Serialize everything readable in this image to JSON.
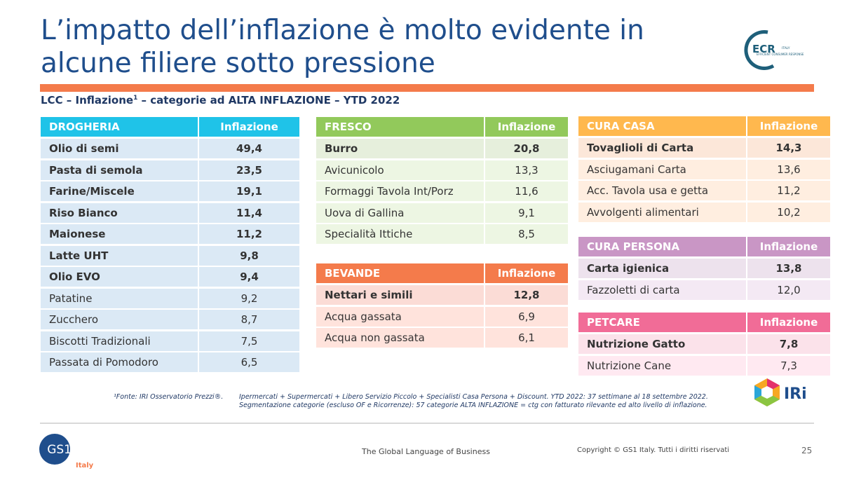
{
  "header": {
    "title_lines": [
      "L’impatto dell’inflazione è molto evidente in",
      "alcune filiere sotto pressione"
    ],
    "subtitle": {
      "before": "LCC – Inflazione",
      "sup": "1",
      "after": " – categorie ad ALTA INFLAZIONE – YTD 2022"
    },
    "ecr_logo": {
      "mark": "ECR",
      "country": "ITALY",
      "tagline": "EFFICIENT CONSUMER RESPONSE"
    }
  },
  "tables": [
    {
      "title": "DROGHERIA",
      "column": "Inflazione",
      "header_color": "#1fc3e8",
      "row_color": "#dbe9f5",
      "rows": [
        {
          "label": "Olio di semi",
          "value": "49,4",
          "bold": true
        },
        {
          "label": "Pasta di semola",
          "value": "23,5",
          "bold": true
        },
        {
          "label": "Farine/Miscele",
          "value": "19,1",
          "bold": true
        },
        {
          "label": "Riso Bianco",
          "value": "11,4",
          "bold": true
        },
        {
          "label": "Maionese",
          "value": "11,2",
          "bold": true
        },
        {
          "label": "Latte UHT",
          "value": "9,8",
          "bold": true
        },
        {
          "label": "Olio EVO",
          "value": "9,4",
          "bold": true
        },
        {
          "label": "Patatine",
          "value": "9,2",
          "bold": false
        },
        {
          "label": "Zucchero",
          "value": "8,7",
          "bold": false
        },
        {
          "label": "Biscotti Tradizionali",
          "value": "7,5",
          "bold": false
        },
        {
          "label": "Passata di Pomodoro",
          "value": "6,5",
          "bold": false
        }
      ]
    },
    {
      "title": "FRESCO",
      "column": "Inflazione",
      "header_color": "#92c95b",
      "row_color": "#e6efdc",
      "rows": [
        {
          "label": "Burro",
          "value": "20,8",
          "bold": true
        },
        {
          "label": "Avicunicolo",
          "value": "13,3",
          "bold": false
        },
        {
          "label": "Formaggi Tavola Int/Porz",
          "value": "11,6",
          "bold": false
        },
        {
          "label": "Uova di Gallina",
          "value": "9,1",
          "bold": false
        },
        {
          "label": "Specialità Ittiche",
          "value": "8,5",
          "bold": false
        }
      ]
    },
    {
      "title": "BEVANDE",
      "column": "Inflazione",
      "header_color": "#f47b4b",
      "row_color": "#fbdcd6",
      "rows": [
        {
          "label": "Nettari e simili",
          "value": "12,8",
          "bold": true
        },
        {
          "label": "Acqua gassata",
          "value": "6,9",
          "bold": false
        },
        {
          "label": "Acqua non gassata",
          "value": "6,1",
          "bold": false
        }
      ]
    },
    {
      "title": "CURA CASA",
      "column": "Inflazione",
      "header_color": "#ffb84e",
      "row_color": "#fce7d9",
      "rows": [
        {
          "label": "Tovaglioli di Carta",
          "value": "14,3",
          "bold": true
        },
        {
          "label": "Asciugamani Carta",
          "value": "13,6",
          "bold": false
        },
        {
          "label": "Acc. Tavola usa e getta",
          "value": "11,2",
          "bold": false
        },
        {
          "label": "Avvolgenti alimentari",
          "value": "10,2",
          "bold": false
        }
      ]
    },
    {
      "title": "CURA PERSONA",
      "column": "Inflazione",
      "header_color": "#c996c5",
      "row_color": "#ede2ed",
      "rows": [
        {
          "label": "Carta igienica",
          "value": "13,8",
          "bold": true
        },
        {
          "label": "Fazzoletti di carta",
          "value": "12,0",
          "bold": false
        }
      ]
    },
    {
      "title": "PETCARE",
      "column": "Inflazione",
      "header_color": "#f16c97",
      "row_color": "#fbe2ea",
      "rows": [
        {
          "label": "Nutrizione Gatto",
          "value": "7,8",
          "bold": true
        },
        {
          "label": "Nutrizione Cane",
          "value": "7,3",
          "bold": false
        }
      ]
    }
  ],
  "footnote": {
    "source": "¹Fonte: IRI Osservatorio Prezzi®.",
    "lines": [
      "Ipermercati + Supermercati + Libero Servizio Piccolo + Specialisti Casa Persona + Discount. YTD 2022: 37 settimane al 18 settembre 2022.",
      "Segmentazione categorie (escluso OF e Ricorrenze): 57 categorie ALTA INFLAZIONE = ctg con fatturato rilevante ed alto livello di inflazione."
    ]
  },
  "iri_logo": "IRi",
  "footer": {
    "gs1_mark": "GS1",
    "gs1_country": "Italy",
    "tagline": "The Global Language of Business",
    "copyright": "Copyright © GS1 Italy. Tutti i diritti riservati",
    "page": "25"
  }
}
